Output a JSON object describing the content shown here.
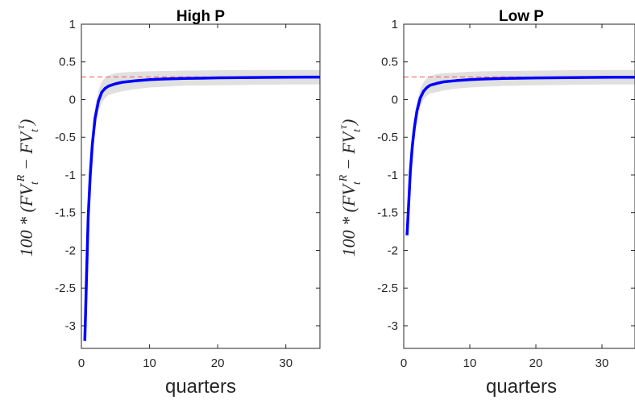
{
  "chart_data": [
    {
      "type": "line",
      "title": "High P",
      "xlabel": "quarters",
      "ylabel": "100 * (FV_t^R − FV_t^τ)",
      "xlim": [
        0,
        35
      ],
      "ylim": [
        -3.3,
        1
      ],
      "xticks": [
        0,
        10,
        20,
        30
      ],
      "yticks": [
        1,
        0.5,
        0,
        -0.5,
        -1,
        -1.5,
        -2,
        -2.5,
        -3
      ],
      "reference_line": 0.3,
      "grid": false,
      "series": [
        {
          "x": [
            0.5,
            0.8,
            1.0,
            1.3,
            1.6,
            2.0,
            2.5,
            3.0,
            3.5,
            4.0,
            5.0,
            6.0,
            8.0,
            10.0,
            12.0,
            15.0,
            20.0,
            25.0,
            30.0,
            35.0
          ],
          "y": [
            -3.2,
            -2.2,
            -1.55,
            -1.0,
            -0.6,
            -0.25,
            -0.02,
            0.1,
            0.15,
            0.18,
            0.21,
            0.23,
            0.25,
            0.265,
            0.272,
            0.28,
            0.288,
            0.293,
            0.297,
            0.298
          ],
          "upper": [
            -3.1,
            -2.05,
            -1.4,
            -0.85,
            -0.45,
            -0.1,
            0.12,
            0.24,
            0.29,
            0.32,
            0.35,
            0.36,
            0.37,
            0.375,
            0.38,
            0.385,
            0.39,
            0.392,
            0.393,
            0.393
          ],
          "lower": [
            -3.3,
            -2.35,
            -1.7,
            -1.15,
            -0.75,
            -0.4,
            -0.16,
            -0.04,
            0.02,
            0.06,
            0.09,
            0.11,
            0.14,
            0.16,
            0.17,
            0.185,
            0.19,
            0.195,
            0.2,
            0.2
          ]
        }
      ]
    },
    {
      "type": "line",
      "title": "Low P",
      "xlabel": "quarters",
      "ylabel": "100 * (FV_t^R − FV_t^τ)",
      "xlim": [
        0,
        35
      ],
      "ylim": [
        -3.3,
        1
      ],
      "xticks": [
        0,
        10,
        20,
        30
      ],
      "yticks": [
        1,
        0.5,
        0,
        -0.5,
        -1,
        -1.5,
        -2,
        -2.5,
        -3
      ],
      "reference_line": 0.3,
      "grid": false,
      "series": [
        {
          "x": [
            0.5,
            0.8,
            1.0,
            1.3,
            1.6,
            2.0,
            2.5,
            3.0,
            3.5,
            4.0,
            5.0,
            6.0,
            8.0,
            10.0,
            12.0,
            15.0,
            20.0,
            25.0,
            30.0,
            35.0
          ],
          "y": [
            -1.8,
            -1.3,
            -0.95,
            -0.62,
            -0.38,
            -0.15,
            0.02,
            0.11,
            0.16,
            0.19,
            0.215,
            0.235,
            0.252,
            0.265,
            0.272,
            0.28,
            0.287,
            0.292,
            0.296,
            0.297
          ],
          "upper": [
            -1.72,
            -1.2,
            -0.84,
            -0.5,
            -0.25,
            -0.02,
            0.14,
            0.23,
            0.28,
            0.31,
            0.34,
            0.35,
            0.36,
            0.37,
            0.375,
            0.38,
            0.385,
            0.39,
            0.392,
            0.392
          ],
          "lower": [
            -1.88,
            -1.4,
            -1.06,
            -0.74,
            -0.51,
            -0.28,
            -0.1,
            0.0,
            0.05,
            0.08,
            0.1,
            0.12,
            0.145,
            0.16,
            0.17,
            0.18,
            0.19,
            0.195,
            0.2,
            0.2
          ]
        }
      ]
    }
  ],
  "colors": {
    "line": "#0000ff",
    "band": "#e0e0e0",
    "reference": "#ee6666",
    "axis": "#262626"
  }
}
